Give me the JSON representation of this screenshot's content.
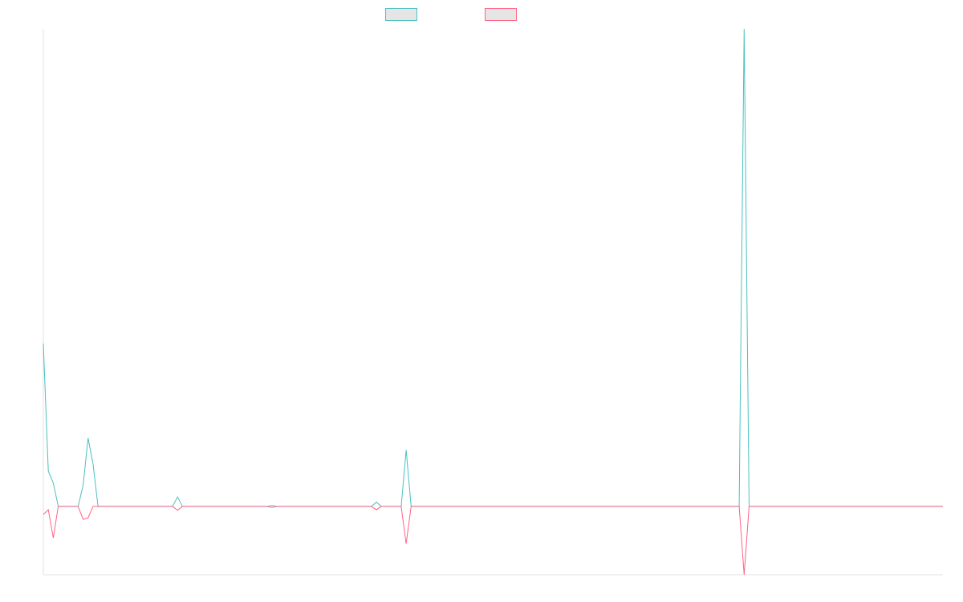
{
  "chart_data": {
    "type": "line",
    "title": "",
    "xlabel": "",
    "ylabel": "",
    "x_count": 182,
    "ylim": [
      -14.3,
      100
    ],
    "grid": false,
    "legend_position": "top-center",
    "series": [
      {
        "color": "#4bc0c0",
        "values": [
          34.1,
          7.4,
          4.9,
          0,
          0,
          0,
          0,
          0,
          4.4,
          14.3,
          8.9,
          0,
          0,
          0,
          0,
          0,
          0,
          0,
          0,
          0,
          0,
          0,
          0,
          0,
          0,
          0,
          0,
          2.0,
          0,
          0,
          0,
          0,
          0,
          0,
          0,
          0,
          0,
          0,
          0,
          0,
          0,
          0,
          0,
          0,
          0,
          0,
          0.2,
          0,
          0,
          0,
          0,
          0,
          0,
          0,
          0,
          0,
          0,
          0,
          0,
          0,
          0,
          0,
          0,
          0,
          0,
          0,
          0,
          0.9,
          0,
          0,
          0,
          0,
          0,
          11.8,
          0,
          0,
          0,
          0,
          0,
          0,
          0,
          0,
          0,
          0,
          0,
          0,
          0,
          0,
          0,
          0,
          0,
          0,
          0,
          0,
          0,
          0,
          0,
          0,
          0,
          0,
          0,
          0,
          0,
          0,
          0,
          0,
          0,
          0,
          0,
          0,
          0,
          0,
          0,
          0,
          0,
          0,
          0,
          0,
          0,
          0,
          0,
          0,
          0,
          0,
          0,
          0,
          0,
          0,
          0,
          0,
          0,
          0,
          0,
          0,
          0,
          0,
          0,
          0,
          0,
          0,
          0,
          100,
          0,
          0,
          0,
          0,
          0,
          0,
          0,
          0,
          0,
          0,
          0,
          0,
          0,
          0,
          0,
          0,
          0,
          0,
          0,
          0,
          0,
          0,
          0,
          0,
          0,
          0,
          0,
          0,
          0,
          0,
          0,
          0,
          0,
          0,
          0,
          0,
          0,
          0,
          0,
          0
        ]
      },
      {
        "color": "#ff6384",
        "values": [
          -1.7,
          -0.7,
          -6.6,
          0,
          0,
          0,
          0,
          0,
          -2.7,
          -2.4,
          0,
          0,
          0,
          0,
          0,
          0,
          0,
          0,
          0,
          0,
          0,
          0,
          0,
          0,
          0,
          0,
          0,
          -0.8,
          0,
          0,
          0,
          0,
          0,
          0,
          0,
          0,
          0,
          0,
          0,
          0,
          0,
          0,
          0,
          0,
          0,
          0,
          -0.2,
          0,
          0,
          0,
          0,
          0,
          0,
          0,
          0,
          0,
          0,
          0,
          0,
          0,
          0,
          0,
          0,
          0,
          0,
          0,
          0,
          -0.7,
          0,
          0,
          0,
          0,
          0,
          -7.8,
          0,
          0,
          0,
          0,
          0,
          0,
          0,
          0,
          0,
          0,
          0,
          0,
          0,
          0,
          0,
          0,
          0,
          0,
          0,
          0,
          0,
          0,
          0,
          0,
          0,
          0,
          0,
          0,
          0,
          0,
          0,
          0,
          0,
          0,
          0,
          0,
          0,
          0,
          0,
          0,
          0,
          0,
          0,
          0,
          0,
          0,
          0,
          0,
          0,
          0,
          0,
          0,
          0,
          0,
          0,
          0,
          0,
          0,
          0,
          0,
          0,
          0,
          0,
          0,
          0,
          0,
          0,
          -14.3,
          0,
          0,
          0,
          0,
          0,
          0,
          0,
          0,
          0,
          0,
          0,
          0,
          0,
          0,
          0,
          0,
          0,
          0,
          0,
          0,
          0,
          0,
          0,
          0,
          0,
          0,
          0,
          0,
          0,
          0,
          0,
          0,
          0,
          0,
          0,
          0,
          0,
          0,
          0,
          0
        ]
      }
    ],
    "legend_fill": "#e5e5e5",
    "axis_color": "#e0e0e0"
  }
}
